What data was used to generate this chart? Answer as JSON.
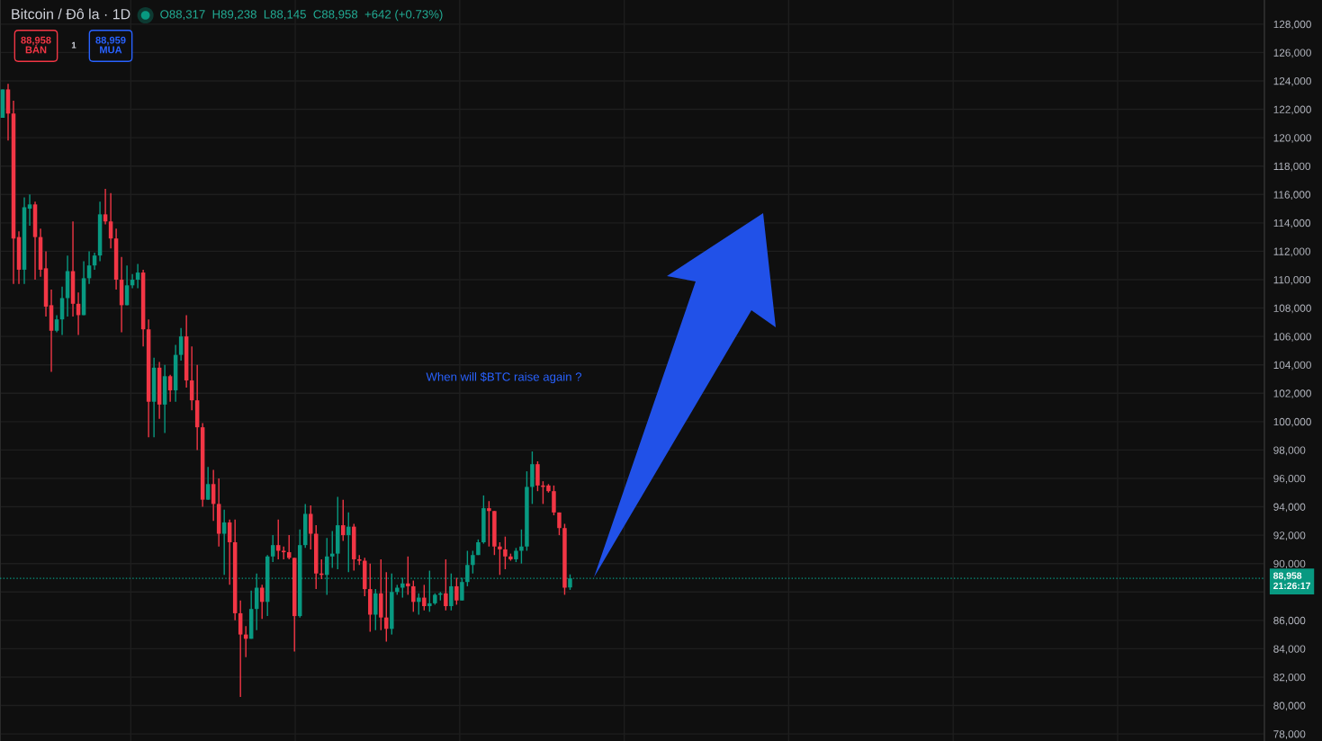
{
  "chart_data": {
    "type": "candlestick",
    "title": "Bitcoin / Đô la · 1D",
    "subtitle": "O88,317  H89,238  L88,145  C88,958  +642 (+0.73%)",
    "annotations": [
      "88,958\nBÁN",
      "1",
      "88,959\nMUA",
      "When will $BTC raise again ?"
    ],
    "categories": [
      null,
      null,
      null,
      null,
      null,
      null,
      null,
      null,
      null,
      null,
      null,
      null,
      null,
      null,
      null,
      null,
      null,
      null,
      null,
      null,
      null,
      null,
      null,
      null,
      null,
      null,
      null,
      null,
      null,
      null,
      null,
      null,
      null,
      null,
      null,
      null,
      null,
      null,
      null,
      null,
      null,
      null,
      null,
      null,
      null,
      null,
      null,
      null,
      null,
      null,
      null,
      null,
      null,
      null,
      null,
      null,
      null,
      null,
      null,
      null,
      null,
      null,
      null,
      null,
      null,
      null,
      null,
      null,
      null,
      null,
      null,
      null,
      null,
      null,
      null,
      null,
      null,
      null,
      null,
      null,
      null,
      null,
      null,
      null,
      null,
      null,
      null,
      null,
      null,
      null,
      null,
      null,
      null,
      null,
      null,
      null,
      null,
      null,
      null,
      null,
      null,
      null,
      null,
      null,
      null,
      null,
      null,
      null,
      null,
      null,
      null,
      null,
      null,
      null,
      null,
      null,
      null,
      null,
      null,
      null,
      null,
      null,
      null,
      null,
      null,
      null,
      null,
      null,
      null,
      null,
      null,
      null,
      null,
      null,
      null,
      null,
      null,
      null,
      null,
      null,
      null,
      null,
      null,
      null,
      null,
      null,
      null,
      null,
      null,
      null,
      null,
      null,
      null,
      null,
      null,
      null,
      null,
      null,
      null,
      null,
      null,
      null,
      null,
      null,
      null,
      null,
      null,
      null,
      null,
      null,
      null,
      null,
      null,
      null,
      null,
      null,
      null,
      null,
      null,
      null,
      null,
      null,
      null,
      null,
      null,
      null,
      null,
      null,
      null,
      null,
      null,
      null,
      null,
      null,
      null,
      null,
      null,
      null,
      null,
      null,
      null,
      null,
      null,
      null,
      null,
      null,
      null,
      null,
      null,
      null,
      null,
      null,
      null,
      null,
      null,
      null,
      null,
      null,
      null,
      null,
      null,
      null,
      null,
      null,
      null,
      null,
      null,
      null,
      null,
      null,
      null,
      null,
      null,
      null
    ],
    "ohlc": [
      [
        121400,
        123400,
        121400,
        123400
      ],
      [
        123400,
        123800,
        119800,
        121700
      ],
      [
        121700,
        122600,
        109700,
        112900
      ],
      [
        113000,
        113400,
        109700,
        110700
      ],
      [
        110700,
        115800,
        109700,
        115100
      ],
      [
        115000,
        116000,
        113800,
        115300
      ],
      [
        115300,
        115500,
        110000,
        113000
      ],
      [
        113000,
        113600,
        110200,
        110700
      ],
      [
        110800,
        112000,
        107400,
        108100
      ],
      [
        108200,
        109300,
        103500,
        106400
      ],
      [
        106400,
        107500,
        106300,
        107200
      ],
      [
        107200,
        109500,
        106100,
        108700
      ],
      [
        108700,
        111700,
        107400,
        110600
      ],
      [
        110600,
        114100,
        107400,
        108300
      ],
      [
        108300,
        109100,
        106100,
        107500
      ],
      [
        107500,
        111300,
        107500,
        110100
      ],
      [
        110100,
        112000,
        109700,
        111000
      ],
      [
        111000,
        111900,
        110700,
        111700
      ],
      [
        111700,
        115500,
        111300,
        114600
      ],
      [
        114600,
        116400,
        113900,
        114100
      ],
      [
        114100,
        116100,
        112200,
        112900
      ],
      [
        112900,
        113600,
        109300,
        110000
      ],
      [
        110000,
        111600,
        106300,
        108200
      ],
      [
        108200,
        111000,
        108200,
        109600
      ],
      [
        109600,
        110400,
        109400,
        110000
      ],
      [
        110000,
        111100,
        109400,
        110500
      ],
      [
        110500,
        110700,
        105300,
        106500
      ],
      [
        106500,
        107200,
        98900,
        101400
      ],
      [
        101400,
        104500,
        98900,
        103800
      ],
      [
        103800,
        104200,
        100200,
        101200
      ],
      [
        101200,
        104000,
        99200,
        103200
      ],
      [
        103200,
        103300,
        101400,
        102200
      ],
      [
        102200,
        105400,
        101400,
        104700
      ],
      [
        104700,
        106600,
        104300,
        106000
      ],
      [
        106000,
        107500,
        102400,
        102900
      ],
      [
        102900,
        105300,
        100800,
        101500
      ],
      [
        101500,
        104000,
        98000,
        99600
      ],
      [
        99600,
        99900,
        94000,
        94500
      ],
      [
        94500,
        96800,
        94500,
        95600
      ],
      [
        95600,
        96600,
        93000,
        94200
      ],
      [
        94200,
        96000,
        91200,
        92100
      ],
      [
        92100,
        93800,
        89200,
        92900
      ],
      [
        92900,
        93100,
        88500,
        91500
      ],
      [
        91500,
        93100,
        86000,
        86500
      ],
      [
        86500,
        87400,
        80600,
        85000
      ],
      [
        85000,
        85600,
        83400,
        84700
      ],
      [
        84700,
        88100,
        84700,
        86800
      ],
      [
        86800,
        89300,
        85300,
        88300
      ],
      [
        88300,
        88500,
        86100,
        87300
      ],
      [
        87300,
        90600,
        86300,
        90500
      ],
      [
        90500,
        92000,
        90100,
        91300
      ],
      [
        91300,
        93100,
        90300,
        90900
      ],
      [
        90900,
        91200,
        90300,
        90800
      ],
      [
        90800,
        92000,
        90300,
        90400
      ],
      [
        90400,
        90400,
        83800,
        86300
      ],
      [
        86300,
        92400,
        86200,
        91300
      ],
      [
        91300,
        94200,
        91100,
        93500
      ],
      [
        93500,
        94100,
        91000,
        92100
      ],
      [
        92100,
        92700,
        88200,
        89300
      ],
      [
        89300,
        90300,
        88900,
        89200
      ],
      [
        89200,
        91800,
        87800,
        90500
      ],
      [
        90500,
        92300,
        89700,
        90700
      ],
      [
        90700,
        94700,
        89600,
        92700
      ],
      [
        92700,
        94500,
        91600,
        92000
      ],
      [
        92000,
        93600,
        89400,
        92600
      ],
      [
        92600,
        92800,
        89500,
        90300
      ],
      [
        90300,
        90600,
        89900,
        90200
      ],
      [
        90200,
        90400,
        87700,
        88200
      ],
      [
        88200,
        90000,
        85200,
        86400
      ],
      [
        86400,
        88200,
        85300,
        87900
      ],
      [
        87900,
        90300,
        85300,
        86200
      ],
      [
        86200,
        89400,
        84500,
        85400
      ],
      [
        85400,
        89300,
        85000,
        88000
      ],
      [
        88000,
        88500,
        87800,
        88300
      ],
      [
        88300,
        89000,
        87600,
        88600
      ],
      [
        88600,
        90500,
        87800,
        88400
      ],
      [
        88400,
        88800,
        86600,
        87300
      ],
      [
        87300,
        87900,
        86400,
        87600
      ],
      [
        87600,
        88500,
        86700,
        87000
      ],
      [
        87000,
        89500,
        86600,
        87200
      ],
      [
        87200,
        87900,
        87100,
        87800
      ],
      [
        87800,
        88000,
        87400,
        87900
      ],
      [
        87900,
        90300,
        86700,
        87000
      ],
      [
        87000,
        89300,
        86700,
        88400
      ],
      [
        88400,
        89000,
        87100,
        87400
      ],
      [
        87400,
        89000,
        87400,
        88700
      ],
      [
        88700,
        90900,
        88400,
        89900
      ],
      [
        89900,
        90900,
        89300,
        90600
      ],
      [
        90600,
        91700,
        90600,
        91500
      ],
      [
        91500,
        94800,
        91400,
        93900
      ],
      [
        93900,
        94400,
        91200,
        93700
      ],
      [
        93700,
        93700,
        90600,
        91200
      ],
      [
        91200,
        91500,
        89200,
        91000
      ],
      [
        91000,
        91900,
        89600,
        90500
      ],
      [
        90500,
        90700,
        90200,
        90300
      ],
      [
        90300,
        91100,
        90100,
        90900
      ],
      [
        90900,
        92400,
        90000,
        91200
      ],
      [
        91200,
        96500,
        90900,
        95400
      ],
      [
        95400,
        97900,
        94200,
        97000
      ],
      [
        97000,
        97200,
        95100,
        95500
      ],
      [
        95500,
        95800,
        94200,
        95400
      ],
      [
        95500,
        95600,
        95000,
        95100
      ],
      [
        95100,
        95500,
        93400,
        93600
      ],
      [
        93600,
        93600,
        92000,
        92500
      ],
      [
        92500,
        92800,
        87800,
        88300
      ],
      [
        88317,
        89238,
        88145,
        88958
      ],
      null,
      null,
      null,
      null,
      null,
      null,
      null,
      null,
      null,
      null,
      null,
      null,
      null,
      null,
      null,
      null,
      null,
      null,
      null,
      null,
      null,
      null,
      null,
      null,
      null,
      null,
      null,
      null,
      null,
      null,
      null,
      null,
      null,
      null,
      null,
      null,
      null,
      null,
      null,
      null,
      null,
      null,
      null,
      null,
      null,
      null,
      null,
      null,
      null,
      null,
      null,
      null,
      null,
      null,
      null,
      null,
      null,
      null,
      null,
      null,
      null,
      null,
      null,
      null,
      null,
      null,
      null,
      null,
      null,
      null,
      null,
      null,
      null,
      null,
      null,
      null,
      null,
      null,
      null,
      null,
      null,
      null,
      null,
      null,
      null,
      null,
      null,
      null,
      null,
      null,
      null,
      null,
      null,
      null,
      null,
      null,
      null,
      null,
      null,
      null,
      null,
      null,
      null,
      null,
      null,
      null,
      null,
      null,
      null,
      null,
      null,
      null,
      null,
      null,
      null,
      null,
      null,
      null,
      null,
      null,
      null,
      null,
      null,
      null,
      null,
      null,
      null,
      null
    ],
    "colors": [
      "#089981",
      "#f23645",
      "#f23645",
      "#f23645",
      "#089981",
      "#089981",
      "#f23645",
      "#f23645",
      "#f23645",
      "#f23645",
      "#089981",
      "#089981",
      "#089981",
      "#f23645",
      "#f23645",
      "#089981",
      "#089981",
      "#089981",
      "#089981",
      "#f23645",
      "#f23645",
      "#f23645",
      "#f23645",
      "#089981",
      "#089981",
      "#089981",
      "#f23645",
      "#f23645",
      "#089981",
      "#f23645",
      "#089981",
      "#f23645",
      "#089981",
      "#089981",
      "#f23645",
      "#f23645",
      "#f23645",
      "#f23645",
      "#089981",
      "#f23645",
      "#f23645",
      "#089981",
      "#f23645",
      "#f23645",
      "#f23645",
      "#f23645",
      "#089981",
      "#089981",
      "#f23645",
      "#089981",
      "#089981",
      "#f23645",
      "#f23645",
      "#f23645",
      "#f23645",
      "#089981",
      "#089981",
      "#f23645",
      "#f23645",
      "#f23645",
      "#089981",
      "#089981",
      "#089981",
      "#f23645",
      "#089981",
      "#f23645",
      "#f23645",
      "#f23645",
      "#f23645",
      "#089981",
      "#f23645",
      "#f23645",
      "#089981",
      "#089981",
      "#089981",
      "#f23645",
      "#f23645",
      "#089981",
      "#f23645",
      "#089981",
      "#089981",
      "#089981",
      "#f23645",
      "#089981",
      "#f23645",
      "#089981",
      "#089981",
      "#089981",
      "#089981",
      "#089981",
      "#f23645",
      "#f23645",
      "#f23645",
      "#f23645",
      "#f23645",
      "#089981",
      "#089981",
      "#089981",
      "#089981",
      "#f23645",
      "#f23645",
      "#f23645",
      "#f23645",
      "#f23645",
      "#f23645",
      "#089981",
      null,
      null,
      null,
      null,
      null,
      null,
      null,
      null,
      null,
      null,
      null,
      null,
      null,
      null,
      null,
      null,
      null,
      null,
      null,
      null,
      null,
      null,
      null,
      null,
      null,
      null,
      null,
      null,
      null,
      null,
      null,
      null,
      null,
      null,
      null,
      null,
      null,
      null,
      null,
      null,
      null,
      null,
      null,
      null,
      null,
      null,
      null,
      null,
      null,
      null,
      null,
      null,
      null,
      null,
      null,
      null,
      null,
      null,
      null,
      null,
      null,
      null,
      null,
      null,
      null,
      null,
      null,
      null,
      null,
      null,
      null,
      null,
      null,
      null,
      null,
      null,
      null,
      null,
      null,
      null,
      null,
      null,
      null,
      null,
      null,
      null,
      null,
      null,
      null,
      null,
      null,
      null,
      null,
      null,
      null,
      null,
      null,
      null,
      null,
      null,
      null,
      null,
      null,
      null,
      null,
      null,
      null,
      null,
      null,
      null,
      null,
      null,
      null,
      null,
      null,
      null,
      null,
      null,
      null,
      null,
      null,
      null,
      null,
      null,
      null,
      null,
      null,
      null
    ],
    "ylim": [
      77500,
      129700
    ],
    "yticks": [
      {
        "value": 78000,
        "label": "78,000"
      },
      {
        "value": 80000,
        "label": "80,000"
      },
      {
        "value": 82000,
        "label": "82,000"
      },
      {
        "value": 84000,
        "label": "84,000"
      },
      {
        "value": 86000,
        "label": "86,000"
      },
      {
        "value": 88000,
        "label": null
      },
      {
        "value": 90000,
        "label": "90,000"
      },
      {
        "value": 92000,
        "label": "92,000"
      },
      {
        "value": 94000,
        "label": "94,000"
      },
      {
        "value": 96000,
        "label": "96,000"
      },
      {
        "value": 98000,
        "label": "98,000"
      },
      {
        "value": 100000,
        "label": "100,000"
      },
      {
        "value": 102000,
        "label": "102,000"
      },
      {
        "value": 104000,
        "label": "104,000"
      },
      {
        "value": 106000,
        "label": "106,000"
      },
      {
        "value": 108000,
        "label": "108,000"
      },
      {
        "value": 110000,
        "label": "110,000"
      },
      {
        "value": 112000,
        "label": "112,000"
      },
      {
        "value": 114000,
        "label": "114,000"
      },
      {
        "value": 116000,
        "label": "116,000"
      },
      {
        "value": 118000,
        "label": "118,000"
      },
      {
        "value": 120000,
        "label": "120,000"
      },
      {
        "value": 122000,
        "label": "122,000"
      },
      {
        "value": 124000,
        "label": "124,000"
      },
      {
        "value": 126000,
        "label": "126,000"
      },
      {
        "value": 128000,
        "label": "128,000"
      }
    ],
    "tick_labels": "y",
    "grid": true,
    "ref_lines": [
      {
        "axis": "y",
        "value": 88958,
        "label": "88,958\n21:26:17",
        "color": "#089981",
        "line_style": "dotted"
      }
    ]
  }
}
